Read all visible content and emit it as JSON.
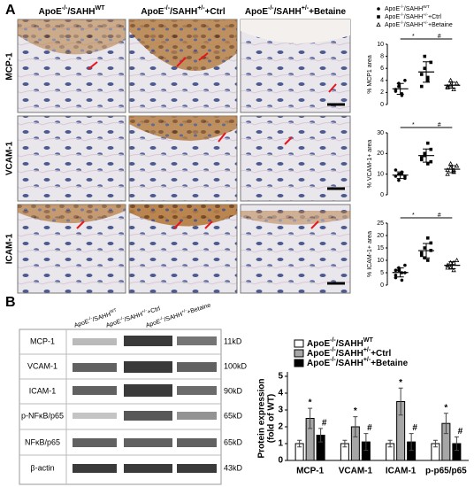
{
  "panel_a": {
    "label": "A",
    "columns": [
      [
        "ApoE",
        "-/-",
        "/SAHH",
        "WT"
      ],
      [
        "ApoE",
        "-/-",
        "/SAHH",
        "+/-",
        "+Ctrl"
      ],
      [
        "ApoE",
        "-/-",
        "/SAHH",
        "+/-",
        "+Betaine"
      ]
    ],
    "rows": [
      "MCP-1",
      "VCAM-1",
      "ICAM-1"
    ],
    "legend": [
      [
        "ApoE",
        "-/-",
        "/SAHH",
        "WT"
      ],
      [
        "ApoE",
        "-/-",
        "/SAHH",
        "+/-",
        "+Ctrl"
      ],
      [
        "ApoE",
        "-/-",
        "/SAHH",
        "+/-",
        "+Betaine"
      ]
    ]
  },
  "panel_b": {
    "label": "B",
    "groups": [
      [
        "ApoE",
        "-/-",
        "/SAHH",
        "WT"
      ],
      [
        "ApoE",
        "-/-",
        "/SAHH",
        "+/-",
        "+Ctrl"
      ],
      [
        "ApoE",
        "-/-",
        "/SAHH",
        "+/-",
        "+Betaine"
      ]
    ],
    "blots": [
      {
        "name": "MCP-1",
        "size": "11kD"
      },
      {
        "name": "VCAM-1",
        "size": "100kD"
      },
      {
        "name": "ICAM-1",
        "size": "90kD"
      },
      {
        "name": "p-NFκB/p65",
        "size": "65kD"
      },
      {
        "name": "NFκB/p65",
        "size": "65kD"
      },
      {
        "name": "β-actin",
        "size": "43kD"
      }
    ]
  },
  "chart_data": [
    {
      "type": "scatter",
      "y_label": "% MCP1 area",
      "ylim": [
        0,
        10
      ],
      "yticks": [
        0,
        2,
        4,
        6,
        8,
        10
      ],
      "annotations": [
        "*",
        "#"
      ],
      "series": [
        {
          "color": "#000",
          "marker": "circle",
          "values": [
            2.5,
            3,
            1.8,
            4,
            2.2,
            3.5,
            1.5
          ],
          "mean": 2.6,
          "sd": 0.9
        },
        {
          "color": "#000",
          "marker": "square",
          "values": [
            5,
            8,
            4,
            7,
            3,
            6,
            4.5
          ],
          "mean": 5.4,
          "sd": 1.7
        },
        {
          "color": "#000",
          "marker": "triangle",
          "values": [
            3,
            4,
            2.5,
            3.5,
            2.8,
            3.2
          ],
          "mean": 3.2,
          "sd": 0.5
        }
      ]
    },
    {
      "type": "scatter",
      "y_label": "% VCAM-1+ area",
      "ylim": [
        0,
        30
      ],
      "yticks": [
        0,
        10,
        20,
        30
      ],
      "annotations": [
        "*",
        "#"
      ],
      "series": [
        {
          "color": "#000",
          "marker": "circle",
          "values": [
            9,
            10,
            11,
            8,
            12,
            7,
            10,
            9
          ],
          "mean": 9.5,
          "sd": 1.6
        },
        {
          "color": "#000",
          "marker": "square",
          "values": [
            18,
            20,
            15,
            22,
            17,
            19,
            25,
            16
          ],
          "mean": 19,
          "sd": 3.2
        },
        {
          "color": "#000",
          "marker": "triangle",
          "values": [
            12,
            13,
            11,
            14,
            10,
            15,
            12
          ],
          "mean": 12.4,
          "sd": 1.7
        }
      ]
    },
    {
      "type": "scatter",
      "y_label": "% ICAM-1+ area",
      "ylim": [
        0,
        25
      ],
      "yticks": [
        0,
        5,
        10,
        15,
        20,
        25
      ],
      "annotations": [
        "*",
        "#"
      ],
      "series": [
        {
          "color": "#000",
          "marker": "circle",
          "values": [
            4,
            6,
            5,
            8,
            3,
            7,
            2,
            5,
            6
          ],
          "mean": 5.1,
          "sd": 1.8
        },
        {
          "color": "#000",
          "marker": "square",
          "values": [
            12,
            15,
            10,
            17,
            13,
            11,
            19,
            14
          ],
          "mean": 13.9,
          "sd": 2.9
        },
        {
          "color": "#000",
          "marker": "triangle",
          "values": [
            7,
            9,
            6,
            10,
            8,
            7,
            9
          ],
          "mean": 8,
          "sd": 1.4
        }
      ]
    },
    {
      "type": "bar",
      "y_label": [
        "Protein expression",
        "(fold of WT)"
      ],
      "categories": [
        "MCP-1",
        "VCAM-1",
        "ICAM-1",
        "p-p65/p65"
      ],
      "ylim": [
        0,
        5
      ],
      "yticks": [
        0,
        1,
        2,
        3,
        4,
        5
      ],
      "series": [
        {
          "name": [
            "ApoE",
            "-/-",
            "/SAHH",
            "WT"
          ],
          "color": "#ffffff",
          "values": [
            1,
            1,
            1,
            1
          ],
          "errors": [
            0.2,
            0.2,
            0.2,
            0.2
          ]
        },
        {
          "name": [
            "ApoE",
            "-/-",
            "/SAHH",
            "+/-",
            "+Ctrl"
          ],
          "color": "#a6a6a6",
          "values": [
            2.5,
            2.0,
            3.5,
            2.2
          ],
          "errors": [
            0.6,
            0.6,
            0.8,
            0.6
          ],
          "labels": [
            "*",
            "*",
            "*",
            "*"
          ]
        },
        {
          "name": [
            "ApoE",
            "-/-",
            "/SAHH",
            "+/-",
            "+Betaine"
          ],
          "color": "#000000",
          "values": [
            1.5,
            1.1,
            1.1,
            1.0
          ],
          "errors": [
            0.4,
            0.5,
            0.5,
            0.4
          ],
          "labels": [
            "#",
            "#",
            "#",
            "#"
          ]
        }
      ]
    }
  ]
}
